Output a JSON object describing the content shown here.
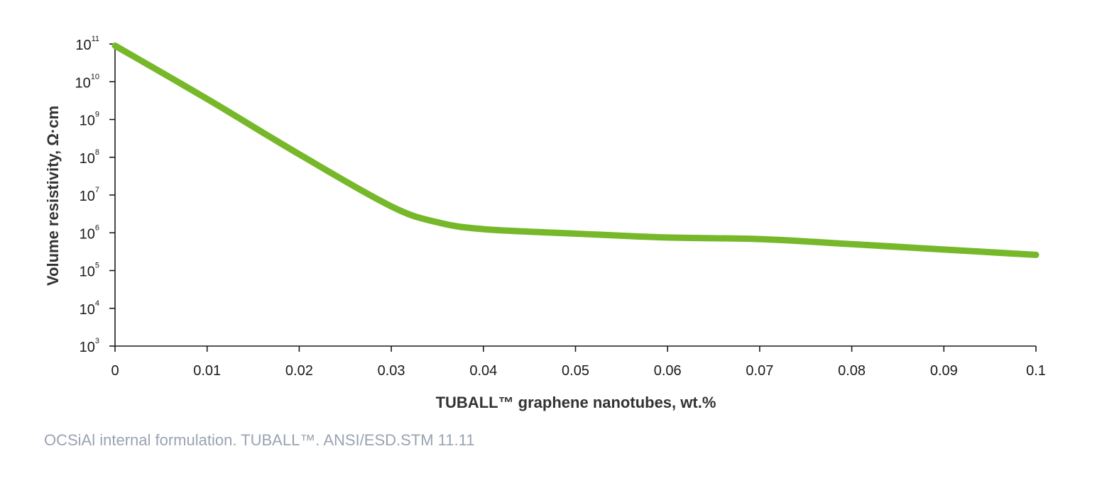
{
  "chart_data": {
    "type": "line",
    "y_scale": "log",
    "xlabel": "TUBALL™ graphene nanotubes, wt.%",
    "ylabel": "Volume resistivity, Ω·cm",
    "xlim": [
      0,
      0.1
    ],
    "ylim": [
      1000,
      100000000000
    ],
    "x_ticks": [
      "0",
      "0.01",
      "0.02",
      "0.03",
      "0.04",
      "0.05",
      "0.06",
      "0.07",
      "0.08",
      "0.09",
      "0.1"
    ],
    "y_ticks": [
      {
        "base": "10",
        "exp": "3",
        "value": 1000
      },
      {
        "base": "10",
        "exp": "4",
        "value": 10000
      },
      {
        "base": "10",
        "exp": "5",
        "value": 100000
      },
      {
        "base": "10",
        "exp": "6",
        "value": 1000000
      },
      {
        "base": "10",
        "exp": "7",
        "value": 10000000
      },
      {
        "base": "10",
        "exp": "8",
        "value": 100000000
      },
      {
        "base": "10",
        "exp": "9",
        "value": 1000000000
      },
      {
        "base": "10",
        "exp": "10",
        "value": 10000000000
      },
      {
        "base": "10",
        "exp": "11",
        "value": 100000000000
      }
    ],
    "grid": false,
    "series": [
      {
        "color": "#76b82a",
        "points": [
          {
            "x": 0,
            "y": 90000000000
          },
          {
            "x": 0.01,
            "y": 3500000000
          },
          {
            "x": 0.02,
            "y": 120000000
          },
          {
            "x": 0.03,
            "y": 5000000
          },
          {
            "x": 0.035,
            "y": 1900000
          },
          {
            "x": 0.04,
            "y": 1250000
          },
          {
            "x": 0.05,
            "y": 950000
          },
          {
            "x": 0.06,
            "y": 750000
          },
          {
            "x": 0.07,
            "y": 680000
          },
          {
            "x": 0.08,
            "y": 500000
          },
          {
            "x": 0.09,
            "y": 360000
          },
          {
            "x": 0.1,
            "y": 260000
          }
        ]
      }
    ]
  },
  "footnote": "OCSiAl internal formulation. TUBALL™. ANSI/ESD.STM 11.11"
}
